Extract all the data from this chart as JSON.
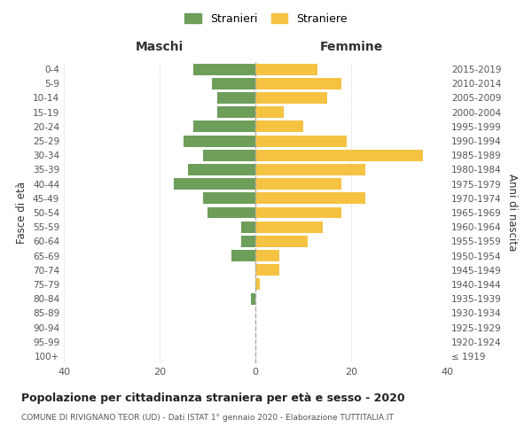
{
  "age_groups": [
    "100+",
    "95-99",
    "90-94",
    "85-89",
    "80-84",
    "75-79",
    "70-74",
    "65-69",
    "60-64",
    "55-59",
    "50-54",
    "45-49",
    "40-44",
    "35-39",
    "30-34",
    "25-29",
    "20-24",
    "15-19",
    "10-14",
    "5-9",
    "0-4"
  ],
  "birth_years": [
    "≤ 1919",
    "1920-1924",
    "1925-1929",
    "1930-1934",
    "1935-1939",
    "1940-1944",
    "1945-1949",
    "1950-1954",
    "1955-1959",
    "1960-1964",
    "1965-1969",
    "1970-1974",
    "1975-1979",
    "1980-1984",
    "1985-1989",
    "1990-1994",
    "1995-1999",
    "2000-2004",
    "2005-2009",
    "2010-2014",
    "2015-2019"
  ],
  "males": [
    0,
    0,
    0,
    0,
    1,
    0,
    0,
    5,
    3,
    3,
    10,
    11,
    17,
    14,
    11,
    15,
    13,
    8,
    8,
    9,
    13
  ],
  "females": [
    0,
    0,
    0,
    0,
    0,
    1,
    5,
    5,
    11,
    14,
    18,
    23,
    18,
    23,
    35,
    19,
    10,
    6,
    15,
    18,
    13
  ],
  "male_color": "#6d9e5a",
  "female_color": "#f5c242",
  "background_color": "#ffffff",
  "grid_color": "#cccccc",
  "title": "Popolazione per cittadinanza straniera per età e sesso - 2020",
  "subtitle": "COMUNE DI RIVIGNANO TEOR (UD) - Dati ISTAT 1° gennaio 2020 - Elaborazione TUTTITALIA.IT",
  "xlabel_left": "Maschi",
  "xlabel_right": "Femmine",
  "ylabel_left": "Fasce di età",
  "ylabel_right": "Anni di nascita",
  "legend_male": "Stranieri",
  "legend_female": "Straniere",
  "xlim": 40,
  "bar_height": 0.8
}
